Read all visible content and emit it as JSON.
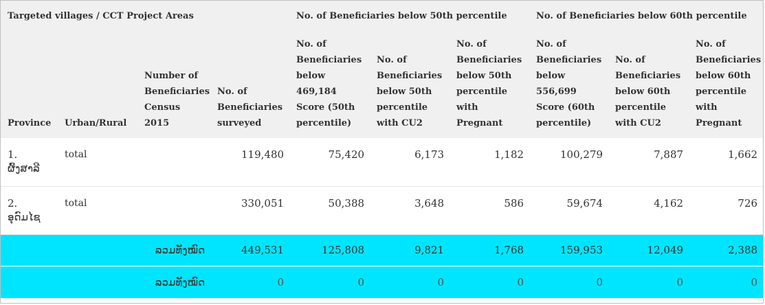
{
  "groups": {
    "areas": "Targeted villages / CCT Project Areas",
    "p50": "No. of Beneficiaries below 50th percentile",
    "p60": "No. of Beneficiaries below 60th percentile"
  },
  "columns": {
    "province": "Province",
    "urban_rural": "Urban/Rural",
    "census": "Number of Beneficiaries Census 2015",
    "surveyed": "No. of Beneficiaries surveyed",
    "p50_score": "No. of Beneficiaries below 469,184 Score (50th percentile)",
    "p50_cu2": "No. of Beneficiaries below 50th percentile with CU2",
    "p50_preg": "No. of Beneficiaries below 50th percentile with Pregnant",
    "p60_score": "No. of Beneficiaries below 556,699 Score (60th percentile)",
    "p60_cu2": "No. of Beneficiaries below 60th percentile with CU2",
    "p60_preg": "No. of Beneficiaries below 60th percentile with Pregnant"
  },
  "rows": [
    {
      "province": "1.\nຜົ້ງສາລີ",
      "type": "total",
      "census": "",
      "surveyed": "119,480",
      "p50_score": "75,420",
      "p50_cu2": "6,173",
      "p50_preg": "1,182",
      "p60_score": "100,279",
      "p60_cu2": "7,887",
      "p60_preg": "1,662"
    },
    {
      "province": "2.\nອຸດົມໄຊ",
      "type": "total",
      "census": "",
      "surveyed": "330,051",
      "p50_score": "50,388",
      "p50_cu2": "3,648",
      "p50_preg": "586",
      "p60_score": "59,674",
      "p60_cu2": "4,162",
      "p60_preg": "726"
    }
  ],
  "total_row": {
    "label": "ລວມທັງໝົດ",
    "surveyed": "449,531",
    "p50_score": "125,808",
    "p50_cu2": "9,821",
    "p50_preg": "1,768",
    "p60_score": "159,953",
    "p60_cu2": "12,049",
    "p60_preg": "2,388"
  },
  "zero_row": {
    "label": "ລວມທັງໝົດ",
    "surveyed": "0",
    "p50_score": "0",
    "p50_cu2": "0",
    "p50_preg": "0",
    "p60_score": "0",
    "p60_cu2": "0",
    "p60_preg": "0"
  },
  "colors": {
    "header_bg": "#f0f0f0",
    "total_bg": "#00e5ff"
  }
}
